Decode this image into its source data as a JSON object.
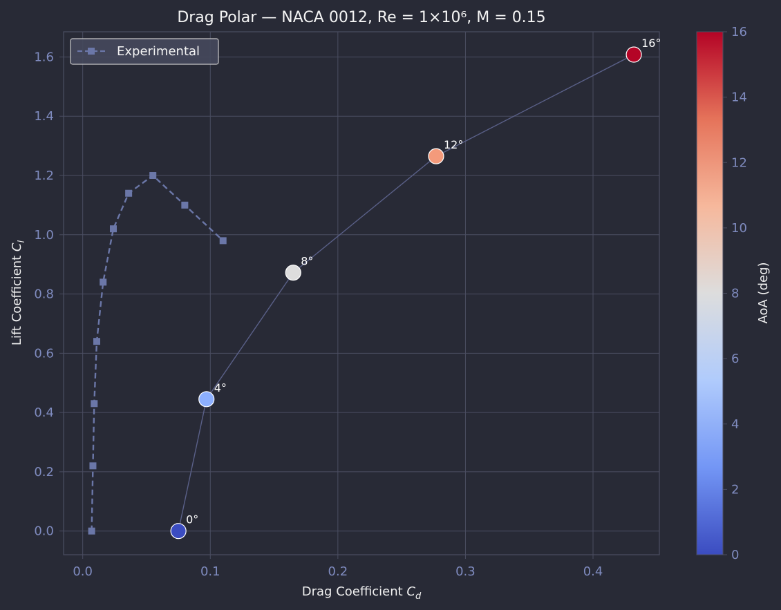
{
  "chart_data": {
    "type": "scatter",
    "title": "Drag Polar — NACA 0012, Re = 1×10⁶, M = 0.15",
    "xlabel_main": "Drag Coefficient ",
    "xlabel_sym": "C",
    "xlabel_sub": "d",
    "ylabel_main": "Lift Coefficient ",
    "ylabel_sym": "C",
    "ylabel_sub": "l",
    "xlim": [
      -0.015,
      0.452
    ],
    "ylim": [
      -0.08,
      1.685
    ],
    "grid": true,
    "legend_position": "top-left",
    "x_ticks": [
      0.0,
      0.1,
      0.2,
      0.3,
      0.4
    ],
    "x_tick_labels": [
      "0.0",
      "0.1",
      "0.2",
      "0.3",
      "0.4"
    ],
    "y_ticks": [
      0.0,
      0.2,
      0.4,
      0.6,
      0.8,
      1.0,
      1.2,
      1.4,
      1.6
    ],
    "y_tick_labels": [
      "0.0",
      "0.2",
      "0.4",
      "0.6",
      "0.8",
      "1.0",
      "1.2",
      "1.4",
      "1.6"
    ],
    "series": [
      {
        "name": "Experimental",
        "style": "dashed-line-square-markers",
        "color": "#6b77a8",
        "x": [
          0.007,
          0.008,
          0.009,
          0.011,
          0.016,
          0.024,
          0.036,
          0.055,
          0.08,
          0.11
        ],
        "y": [
          0.0,
          0.22,
          0.43,
          0.64,
          0.84,
          1.02,
          1.14,
          1.2,
          1.1,
          0.98
        ]
      },
      {
        "style": "line-circle-markers-colormapped",
        "line_color": "#5a6088",
        "x": [
          0.075,
          0.097,
          0.165,
          0.277,
          0.432
        ],
        "y": [
          0.0,
          0.445,
          0.872,
          1.265,
          1.608
        ],
        "aoa": [
          0,
          4,
          8,
          12,
          16
        ],
        "labels": [
          "0°",
          "4°",
          "8°",
          "12°",
          "16°"
        ],
        "colors": [
          "#3b4cc0",
          "#8caffe",
          "#dddddd",
          "#f49a7b",
          "#b40426"
        ]
      }
    ],
    "colorbar": {
      "label": "AoA (deg)",
      "range": [
        0,
        16
      ],
      "ticks": [
        0,
        2,
        4,
        6,
        8,
        10,
        12,
        14,
        16
      ],
      "tick_labels": [
        "0",
        "2",
        "4",
        "6",
        "8",
        "10",
        "12",
        "14",
        "16"
      ],
      "colormap": "coolwarm",
      "colors": [
        "#3b4cc0",
        "#7396f5",
        "#b0cbfc",
        "#dddddd",
        "#f6b89c",
        "#e5735a",
        "#b40426"
      ]
    },
    "colors": {
      "background": "#282a36",
      "grid": "#4b4e62",
      "spine": "#4b4e62",
      "tick_text": "#7f8bbf"
    }
  }
}
